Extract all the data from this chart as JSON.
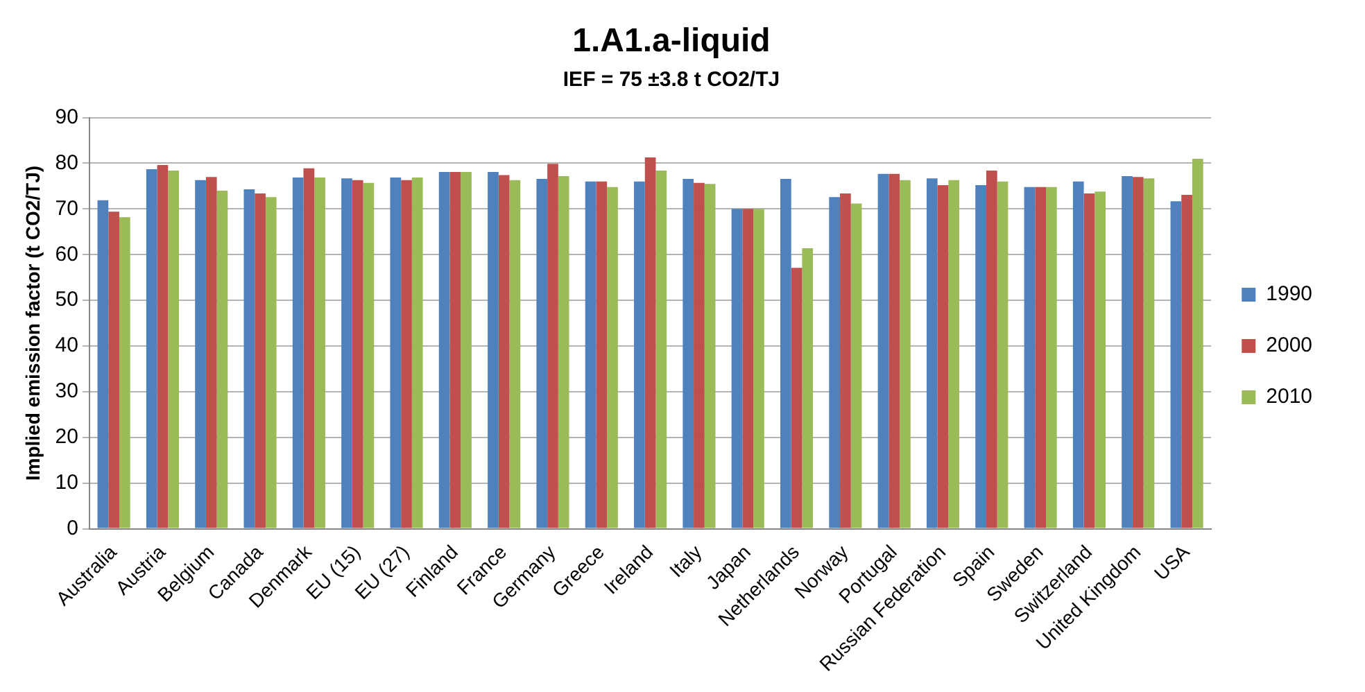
{
  "chart_data": {
    "type": "bar",
    "title": "1.A1.a-liquid",
    "subtitle": "IEF = 75 ±3.8 t CO2/TJ",
    "ylabel": "Implied emission factor (t CO2/TJ)",
    "categories": [
      "Australia",
      "Austria",
      "Belgium",
      "Canada",
      "Denmark",
      "EU (15)",
      "EU (27)",
      "Finland",
      "France",
      "Germany",
      "Greece",
      "Ireland",
      "Italy",
      "Japan",
      "Netherlands",
      "Norway",
      "Portugal",
      "Russian Federation",
      "Spain",
      "Sweden",
      "Switzerland",
      "United Kingdom",
      "USA"
    ],
    "series": [
      {
        "name": "1990",
        "color": "#4f81bd",
        "values": [
          71.9,
          78.7,
          76.3,
          74.3,
          76.9,
          76.7,
          76.9,
          78.1,
          78.1,
          76.6,
          76.0,
          76.0,
          76.6,
          70.0,
          76.6,
          72.6,
          77.7,
          76.7,
          75.2,
          74.8,
          76.0,
          77.2,
          71.7
        ]
      },
      {
        "name": "2000",
        "color": "#c0504d",
        "values": [
          69.4,
          79.6,
          77.0,
          73.4,
          78.9,
          76.3,
          76.3,
          78.1,
          77.4,
          79.9,
          76.0,
          81.3,
          75.7,
          70.0,
          57.1,
          73.4,
          77.7,
          75.2,
          78.4,
          74.8,
          73.4,
          77.0,
          73.1
        ]
      },
      {
        "name": "2010",
        "color": "#9bbb59",
        "values": [
          68.2,
          78.4,
          74.0,
          72.6,
          76.9,
          75.7,
          76.9,
          78.1,
          76.3,
          77.2,
          74.8,
          78.4,
          75.5,
          70.0,
          61.4,
          71.2,
          76.3,
          76.3,
          76.0,
          74.8,
          73.8,
          76.7,
          81.0
        ]
      }
    ],
    "ylim": [
      0,
      90
    ],
    "yticks": [
      0,
      10,
      20,
      30,
      40,
      50,
      60,
      70,
      80,
      90
    ],
    "grid": "y",
    "legend": "right"
  }
}
